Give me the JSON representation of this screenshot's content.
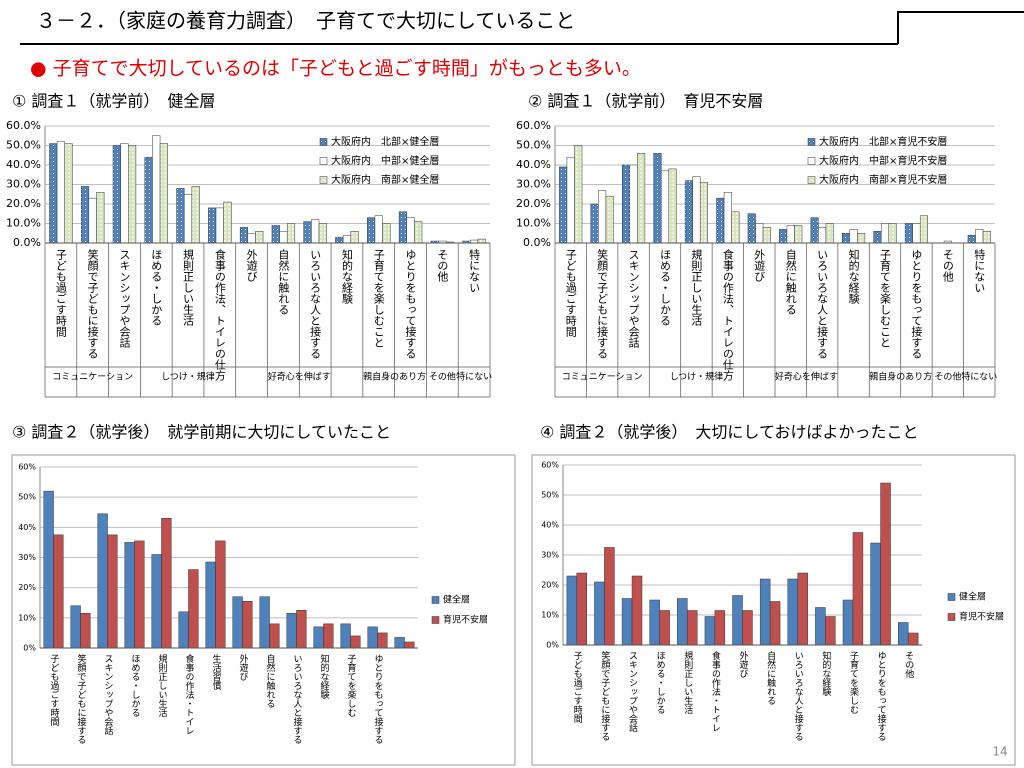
{
  "slide_title": "３－２．（家庭の養育力調査）　子育てで大切にしていること",
  "bullet": "● 子育てで大切しているのは「子どもと過ごす時間」がもっとも多い。",
  "page_number": "14",
  "chart_data": [
    {
      "type": "bar",
      "title": "① 調査１（就学前）　健全層",
      "categories": [
        "子ども過ごす時間",
        "笑顔で子どもに接する",
        "スキンシップや会話",
        "ほめる・しかる",
        "規則正しい生活",
        "食事の作法、トイレの仕方",
        "外遊び",
        "自然に触れる",
        "いろいろな人と接する",
        "知的な経験",
        "子育てを楽しむこと",
        "ゆとりをもって接する",
        "その他",
        "特にない"
      ],
      "category_groups": [
        "コミュニケーション",
        "コミュニケーション",
        "コミュニケーション",
        "しつけ・規律",
        "しつけ・規律",
        "しつけ・規律",
        "好奇心を伸ばす",
        "好奇心を伸ばす",
        "好奇心を伸ばす",
        "好奇心を伸ばす",
        "親自身のあり方",
        "親自身のあり方",
        "その他",
        "特にない"
      ],
      "series": [
        {
          "name": "大阪府内　北部×健全層",
          "color": "#4f81bd",
          "pattern": "dots",
          "values": [
            51,
            29,
            50,
            44,
            28,
            18,
            8,
            9,
            11,
            3,
            13,
            16,
            1,
            1
          ]
        },
        {
          "name": "大阪府内　中部×健全層",
          "color": "#ffffff",
          "values": [
            52,
            23,
            51,
            55,
            25,
            18,
            5,
            6,
            12,
            4,
            14,
            13,
            1,
            1.5
          ]
        },
        {
          "name": "大阪府内　南部×健全層",
          "color": "#d7e4bd",
          "pattern": "checker",
          "values": [
            51,
            26,
            50,
            51,
            29,
            21,
            6,
            10,
            10,
            6,
            10,
            11,
            0.5,
            2
          ]
        }
      ],
      "ylim": [
        0,
        60
      ],
      "yticks": [
        {
          "value": 0,
          "label": "0.0%"
        },
        {
          "value": 10,
          "label": "10.0%"
        },
        {
          "value": 20,
          "label": "20.0%"
        },
        {
          "value": 30,
          "label": "30.0%"
        },
        {
          "value": 40,
          "label": "40.0%"
        },
        {
          "value": 50,
          "label": "50.0%"
        },
        {
          "value": 60,
          "label": "60.0%"
        }
      ],
      "grid": true
    },
    {
      "type": "bar",
      "title": "② 調査１（就学前）　育児不安層",
      "categories": [
        "子ども過ごす時間",
        "笑顔で子どもに接する",
        "スキンシップや会話",
        "ほめる・しかる",
        "規則正しい生活",
        "食事の作法、トイレの仕方",
        "外遊び",
        "自然に触れる",
        "いろいろな人と接する",
        "知的な経験",
        "子育てを楽しむこと",
        "ゆとりをもって接する",
        "その他",
        "特にない"
      ],
      "category_groups": [
        "コミュニケーション",
        "コミュニケーション",
        "コミュニケーション",
        "しつけ・規律",
        "しつけ・規律",
        "しつけ・規律",
        "好奇心を伸ばす",
        "好奇心を伸ばす",
        "好奇心を伸ばす",
        "好奇心を伸ばす",
        "親自身のあり方",
        "親自身のあり方",
        "その他",
        "特にない"
      ],
      "series": [
        {
          "name": "大阪府内　北部×育児不安層",
          "color": "#4f81bd",
          "pattern": "dots",
          "values": [
            39,
            20,
            40,
            46,
            32,
            23,
            15,
            7,
            13,
            5,
            6,
            10,
            0,
            4
          ]
        },
        {
          "name": "大阪府内　中部×育児不安層",
          "color": "#ffffff",
          "values": [
            44,
            27,
            40,
            37,
            34,
            26,
            10,
            9,
            8,
            7,
            10,
            10,
            1,
            7
          ]
        },
        {
          "name": "大阪府内　南部×育児不安層",
          "color": "#d7e4bd",
          "pattern": "checker",
          "values": [
            50,
            24,
            46,
            38,
            31,
            16,
            8,
            9,
            10,
            5,
            10,
            14,
            0,
            6
          ]
        }
      ],
      "ylim": [
        0,
        60
      ],
      "yticks": [
        {
          "value": 0,
          "label": "0.0%"
        },
        {
          "value": 10,
          "label": "10.0%"
        },
        {
          "value": 20,
          "label": "20.0%"
        },
        {
          "value": 30,
          "label": "30.0%"
        },
        {
          "value": 40,
          "label": "40.0%"
        },
        {
          "value": 50,
          "label": "50.0%"
        },
        {
          "value": 60,
          "label": "60.0%"
        }
      ],
      "grid": true
    },
    {
      "type": "bar",
      "title": "③ 調査２（就学後）　就学前期に大切にしていたこと",
      "categories": [
        "子ども過ごす時間",
        "笑顔で子どもに接する",
        "スキンシップや会話",
        "ほめる・しかる",
        "規則正しい生活",
        "食事の作法・トイレ",
        "生活習慣",
        "外遊び",
        "自然に触れる",
        "いろいろな人と接する",
        "知的な経験",
        "子育てを楽しむ",
        "ゆとりをもって接する",
        null
      ],
      "series": [
        {
          "name": "健全層",
          "color": "#4f81bd",
          "values": [
            52,
            14,
            44.5,
            35,
            31,
            12,
            28.5,
            17,
            17,
            11.5,
            7,
            8,
            7,
            3.5
          ]
        },
        {
          "name": "育児不安層",
          "color": "#c0504d",
          "values": [
            37.5,
            11.5,
            37.5,
            35.5,
            43,
            26,
            35.5,
            15.5,
            8,
            12.5,
            8,
            4,
            5,
            2
          ]
        }
      ],
      "ylim": [
        0,
        60
      ],
      "yticks": [
        {
          "value": 0,
          "label": "0%"
        },
        {
          "value": 10,
          "label": "10%"
        },
        {
          "value": 20,
          "label": "20%"
        },
        {
          "value": 30,
          "label": "30%"
        },
        {
          "value": 40,
          "label": "40%"
        },
        {
          "value": 50,
          "label": "50%"
        },
        {
          "value": 60,
          "label": "60%"
        }
      ],
      "grid": true
    },
    {
      "type": "bar",
      "title": "④ 調査２（就学後）　大切にしておけばよかったこと",
      "categories": [
        "子ども過ごす時間",
        "笑顔で子どもに接する",
        "スキンシップや会話",
        "ほめる・しかる",
        "規則正しい生活",
        "食事の作法・トイレ",
        "外遊び",
        "自然に触れる",
        "いろいろな人と接する",
        "知的な経験",
        "子育てを楽しむ",
        "ゆとりをもって接する",
        "その他"
      ],
      "series": [
        {
          "name": "健全層",
          "color": "#4f81bd",
          "values": [
            23,
            21,
            15.5,
            15,
            15.5,
            9.5,
            16.5,
            22,
            22,
            12.5,
            15,
            34,
            7.5
          ]
        },
        {
          "name": "育児不安層",
          "color": "#c0504d",
          "values": [
            24,
            32.5,
            23,
            11.5,
            11.5,
            11.5,
            11.5,
            14.5,
            24,
            9.5,
            37.5,
            54,
            4
          ]
        }
      ],
      "ylim": [
        0,
        60
      ],
      "yticks": [
        {
          "value": 0,
          "label": "0%"
        },
        {
          "value": 10,
          "label": "10%"
        },
        {
          "value": 20,
          "label": "20%"
        },
        {
          "value": 30,
          "label": "30%"
        },
        {
          "value": 40,
          "label": "40%"
        },
        {
          "value": 50,
          "label": "50%"
        },
        {
          "value": 60,
          "label": "60%"
        }
      ],
      "grid": true
    }
  ]
}
